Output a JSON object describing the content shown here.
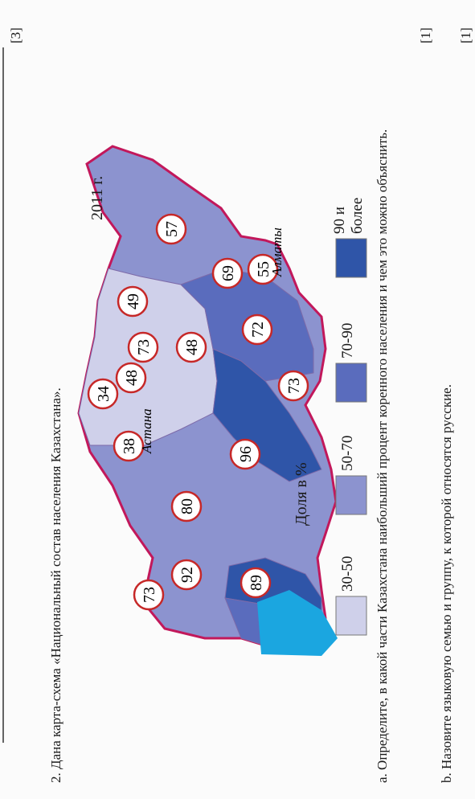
{
  "score_total": "[3]",
  "question": "2. Дана карта-схема «Национальный состав населения Казахстана».",
  "map": {
    "year": "2011 г.",
    "legend_title": "Доля в %",
    "legend": [
      "30-50",
      "50-70",
      "70-90",
      "90 и более"
    ],
    "cities": [
      "Астана",
      "Алматы"
    ],
    "regions": [
      73,
      92,
      89,
      80,
      38,
      34,
      48,
      73,
      48,
      49,
      96,
      73,
      72,
      69,
      55,
      57
    ]
  },
  "part_a": {
    "text": "а. Определите, в какой части Казахстана наибольший процент коренного населения и чем это можно объяснить.",
    "score": "[1]"
  },
  "part_b": {
    "text": "b. Назовите языковую семью и группу, к которой относятся русские.",
    "score": "[1]"
  }
}
